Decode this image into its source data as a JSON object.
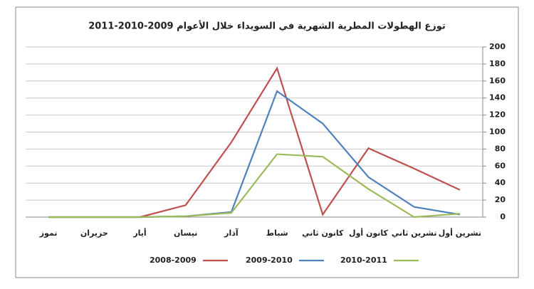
{
  "chart_data": {
    "type": "line",
    "title": "توزع الهطولات المطرية الشهرية في السويداء خلال الأعوام 2009-2010-2011",
    "categories": [
      "تشرين أول",
      "تشرين ثاني",
      "كانون أول",
      "كانون ثاني",
      "شباط",
      "آذار",
      "نيسان",
      "أيار",
      "حزيران",
      "تموز"
    ],
    "x_reversed": true,
    "series": [
      {
        "name": "2008-2009",
        "color": "#c0504d",
        "values": [
          32,
          57,
          81,
          3,
          175,
          88,
          14,
          0,
          0,
          0
        ]
      },
      {
        "name": "2009-2010",
        "color": "#4f81bd",
        "values": [
          3,
          12,
          47,
          110,
          148,
          6,
          1,
          0,
          0,
          0
        ]
      },
      {
        "name": "2010-2011",
        "color": "#9bbb59",
        "values": [
          4,
          0,
          33,
          71,
          74,
          5,
          1,
          0,
          0,
          0
        ]
      }
    ],
    "ylim": [
      0,
      200
    ],
    "yticks": [
      0,
      20,
      40,
      60,
      80,
      100,
      120,
      140,
      160,
      180,
      200
    ],
    "y_axis_side": "right",
    "grid": true,
    "legend": "bottom"
  }
}
